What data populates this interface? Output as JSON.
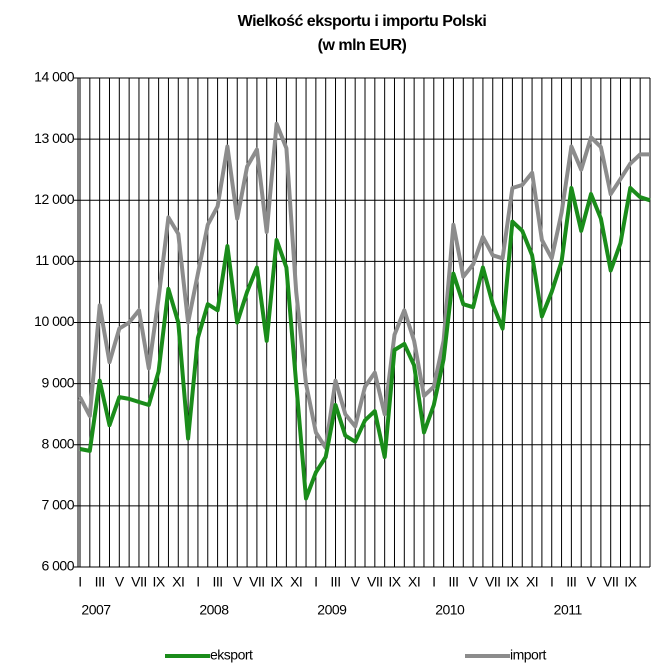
{
  "chart_data": {
    "type": "line",
    "title": "Wielkość eksportu i importu Polski",
    "subtitle": "(w mln EUR)",
    "categories": [
      "I",
      null,
      "III",
      null,
      "V",
      null,
      "VII",
      null,
      "IX",
      null,
      "XI",
      null,
      "I",
      null,
      "III",
      null,
      "V",
      null,
      "VII",
      null,
      "IX",
      null,
      "XI",
      null,
      "I",
      null,
      "III",
      null,
      "V",
      null,
      "VII",
      null,
      "IX",
      null,
      "XI",
      null,
      "I",
      null,
      "III",
      null,
      "V",
      null,
      "VII",
      null,
      "IX",
      null,
      "XI",
      null,
      "I",
      null,
      "III",
      null,
      "V",
      null,
      "VII",
      null,
      "IX",
      null,
      null
    ],
    "years": [
      "2007",
      "2008",
      "2009",
      "2010",
      "2011"
    ],
    "series": [
      {
        "name": "eksport",
        "color": "#1a8c1a",
        "values": [
          7930,
          7900,
          9050,
          8320,
          8780,
          8750,
          8700,
          8650,
          9200,
          10550,
          10000,
          8100,
          9750,
          10300,
          10200,
          11250,
          10000,
          10500,
          10900,
          9700,
          11350,
          10900,
          9000,
          7120,
          7550,
          7800,
          8650,
          8150,
          8050,
          8400,
          8550,
          7800,
          9550,
          9650,
          9300,
          8200,
          8650,
          9400,
          10800,
          10300,
          10250,
          10900,
          10300,
          9900,
          11650,
          11500,
          11100,
          10100,
          10500,
          11000,
          12200,
          11500,
          12100,
          11700,
          10850,
          11300,
          12200,
          12050,
          12000
        ]
      },
      {
        "name": "import",
        "color": "#8c8c8c",
        "values": [
          8780,
          8470,
          10280,
          9350,
          9900,
          10000,
          10200,
          9250,
          10400,
          11720,
          11450,
          10000,
          10800,
          11600,
          11900,
          12880,
          11700,
          12550,
          12830,
          11480,
          13250,
          12850,
          10500,
          9000,
          8200,
          7950,
          9050,
          8500,
          8300,
          8950,
          9180,
          8500,
          9800,
          10200,
          9700,
          8800,
          8950,
          9700,
          11600,
          10750,
          10950,
          11400,
          11100,
          11050,
          12200,
          12250,
          12450,
          11350,
          11050,
          11800,
          12880,
          12500,
          13030,
          12870,
          12100,
          12350,
          12600,
          12750,
          12750
        ]
      }
    ],
    "ylim": [
      6000,
      14000
    ],
    "yticks": [
      {
        "value": 6000,
        "label": "6 000"
      },
      {
        "value": 7000,
        "label": "7 000"
      },
      {
        "value": 8000,
        "label": "8 000"
      },
      {
        "value": 9000,
        "label": "9 000"
      },
      {
        "value": 10000,
        "label": "10 000"
      },
      {
        "value": 11000,
        "label": "11 000"
      },
      {
        "value": 12000,
        "label": "12 000"
      },
      {
        "value": 13000,
        "label": "13 000"
      },
      {
        "value": 14000,
        "label": "14 000"
      }
    ],
    "grid": true,
    "legend": "bottom"
  }
}
